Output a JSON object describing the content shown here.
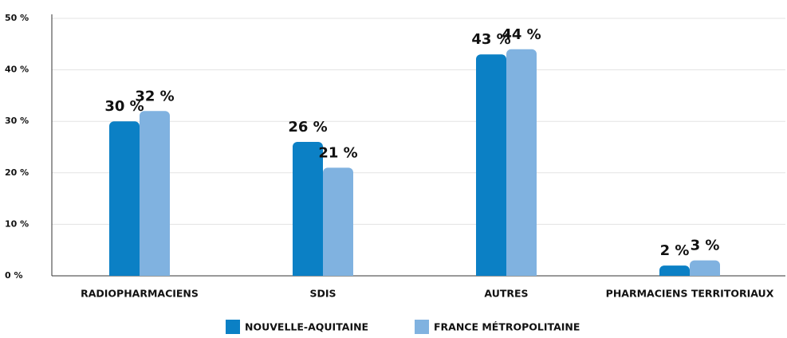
{
  "chart_data": {
    "type": "bar",
    "categories": [
      "RADIOPHARMACIENS",
      "SDIS",
      "AUTRES",
      "PHARMACIENS TERRITORIAUX"
    ],
    "series": [
      {
        "name": "NOUVELLE-AQUITAINE",
        "color": "#0b80c5",
        "values": [
          30,
          26,
          43,
          2
        ],
        "value_labels": [
          "30 %",
          "26 %",
          "43 %",
          "2 %"
        ]
      },
      {
        "name": "FRANCE MÉTROPOLITAINE",
        "color": "#80b2e0",
        "values": [
          32,
          21,
          44,
          3
        ],
        "value_labels": [
          "32 %",
          "21 %",
          "44 %",
          "3 %"
        ]
      }
    ],
    "ylim": [
      0,
      50
    ],
    "yticks": [
      {
        "value": 0,
        "label": "0 %"
      },
      {
        "value": 10,
        "label": "10 %"
      },
      {
        "value": 20,
        "label": "20 %"
      },
      {
        "value": 30,
        "label": "30 %"
      },
      {
        "value": 40,
        "label": "40 %"
      },
      {
        "value": 50,
        "label": "50 %"
      }
    ],
    "grid": true
  }
}
